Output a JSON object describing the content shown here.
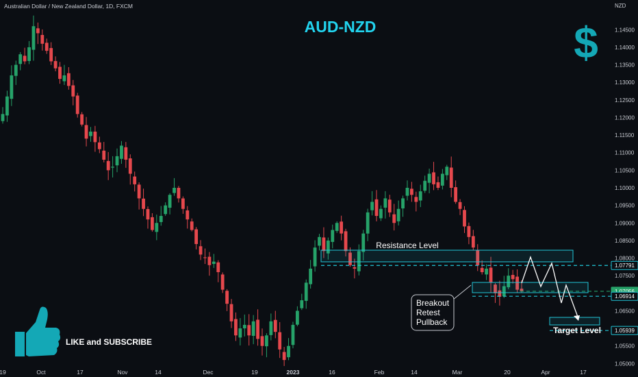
{
  "header": {
    "symbol_title": "Australian Dollar / New Zealand Dollar, 1D, FXCM",
    "currency": "NZD"
  },
  "chart_data": {
    "type": "candlestick",
    "title": "AUD-NZD",
    "x_tick_labels": [
      "19",
      "Oct",
      "17",
      "Nov",
      "14",
      "Dec",
      "19",
      "2023",
      "16",
      "Feb",
      "14",
      "Mar",
      "20",
      "Apr",
      "17"
    ],
    "y_ticks": [
      "1.14500",
      "1.14000",
      "1.13500",
      "1.13000",
      "1.12500",
      "1.12000",
      "1.11500",
      "1.11000",
      "1.10500",
      "1.10000",
      "1.09500",
      "1.09000",
      "1.08500",
      "1.08000",
      "1.07500",
      "1.07000",
      "1.06500",
      "1.06000",
      "1.05500",
      "1.05000"
    ],
    "ylim": [
      1.0485,
      1.1515
    ],
    "grid": false,
    "colors": {
      "up": "#26a269",
      "down": "#e5484d",
      "zone": "#22c7d9",
      "background": "#0b0e13"
    },
    "levels": [
      {
        "label": "1.07791",
        "value": 1.07791,
        "color": "#22c7d9"
      },
      {
        "label": "1.07056",
        "value": 1.07056,
        "color": "#26a269"
      },
      {
        "label": "1.06914",
        "value": 1.06914,
        "color": "#22c7d9"
      },
      {
        "label": "1.05939",
        "value": 1.05939,
        "color": "#22c7d9"
      }
    ],
    "annotations": {
      "resistance": "Resistance Level",
      "target": "Target Level",
      "breakout": [
        "Breakout",
        "Retest",
        "Pullback"
      ],
      "like": "LIKE and SUBSCRIBE",
      "dollar": "$"
    },
    "close_path": [
      1.121,
      1.126,
      1.132,
      1.135,
      1.138,
      1.136,
      1.14,
      1.146,
      1.144,
      1.141,
      1.139,
      1.136,
      1.134,
      1.131,
      1.132,
      1.129,
      1.126,
      1.121,
      1.118,
      1.114,
      1.116,
      1.113,
      1.111,
      1.108,
      1.105,
      1.106,
      1.109,
      1.112,
      1.108,
      1.104,
      1.101,
      1.097,
      1.094,
      1.091,
      1.088,
      1.09,
      1.092,
      1.095,
      1.098,
      1.1,
      1.097,
      1.094,
      1.091,
      1.088,
      1.084,
      1.081,
      1.08,
      1.078,
      1.079,
      1.076,
      1.071,
      1.067,
      1.062,
      1.058,
      1.06,
      1.061,
      1.058,
      1.062,
      1.057,
      1.055,
      1.058,
      1.062,
      1.059,
      1.054,
      1.051,
      1.055,
      1.061,
      1.065,
      1.068,
      1.073,
      1.077,
      1.083,
      1.086,
      1.082,
      1.085,
      1.088,
      1.09,
      1.087,
      1.082,
      1.078,
      1.077,
      1.082,
      1.087,
      1.093,
      1.096,
      1.092,
      1.094,
      1.097,
      1.093,
      1.09,
      1.094,
      1.097,
      1.1,
      1.098,
      1.096,
      1.099,
      1.102,
      1.104,
      1.101,
      1.1,
      1.104,
      1.106,
      1.1,
      1.096,
      1.094,
      1.089,
      1.086,
      1.083,
      1.078,
      1.076,
      1.077,
      1.073,
      1.07,
      1.069,
      1.072,
      1.075,
      1.074,
      1.071,
      1.0705
    ]
  }
}
